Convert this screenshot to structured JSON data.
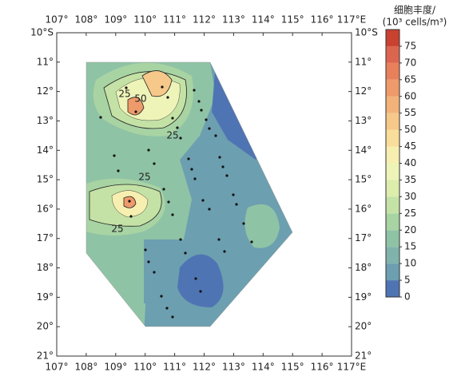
{
  "chart_data": {
    "type": "contour-map",
    "xlim": [
      107,
      117
    ],
    "ylim": [
      10,
      21
    ],
    "xticks": [
      {
        "value": 107,
        "label": "107°"
      },
      {
        "value": 108,
        "label": "108°"
      },
      {
        "value": 109,
        "label": "109°"
      },
      {
        "value": 110,
        "label": "110°"
      },
      {
        "value": 111,
        "label": "111°"
      },
      {
        "value": 112,
        "label": "112°"
      },
      {
        "value": 113,
        "label": "113°"
      },
      {
        "value": 114,
        "label": "114°"
      },
      {
        "value": 115,
        "label": "115°"
      },
      {
        "value": 116,
        "label": "116°"
      },
      {
        "value": 117,
        "label": "117°E"
      }
    ],
    "yticks": [
      {
        "value": 10,
        "label": "10°S"
      },
      {
        "value": 11,
        "label": "11°"
      },
      {
        "value": 12,
        "label": "12°"
      },
      {
        "value": 13,
        "label": "13°"
      },
      {
        "value": 14,
        "label": "14°"
      },
      {
        "value": 15,
        "label": "15°"
      },
      {
        "value": 16,
        "label": "16°"
      },
      {
        "value": 17,
        "label": "17°"
      },
      {
        "value": 18,
        "label": "18°"
      },
      {
        "value": 19,
        "label": "19°"
      },
      {
        "value": 20,
        "label": "20°"
      },
      {
        "value": 21,
        "label": "21°"
      }
    ],
    "contour_labels": [
      "25",
      "50",
      "25",
      "25",
      "25"
    ],
    "colorbar": {
      "title": "细胞丰度/",
      "unit": "(10³ cells/m³)",
      "clim": [
        0,
        80
      ],
      "ticks": [
        0,
        5,
        10,
        15,
        20,
        25,
        30,
        35,
        40,
        45,
        50,
        55,
        60,
        65,
        70,
        75
      ],
      "colors": [
        "#4f74b3",
        "#6c9fb0",
        "#80b3ab",
        "#8fc3a5",
        "#a8d3a3",
        "#c4e2a5",
        "#dcedac",
        "#eef4b8",
        "#f7efb0",
        "#f8de9a",
        "#f6c88a",
        "#f2b27a",
        "#ee9a6a",
        "#e8805c",
        "#dc6550",
        "#c9412f"
      ]
    }
  }
}
